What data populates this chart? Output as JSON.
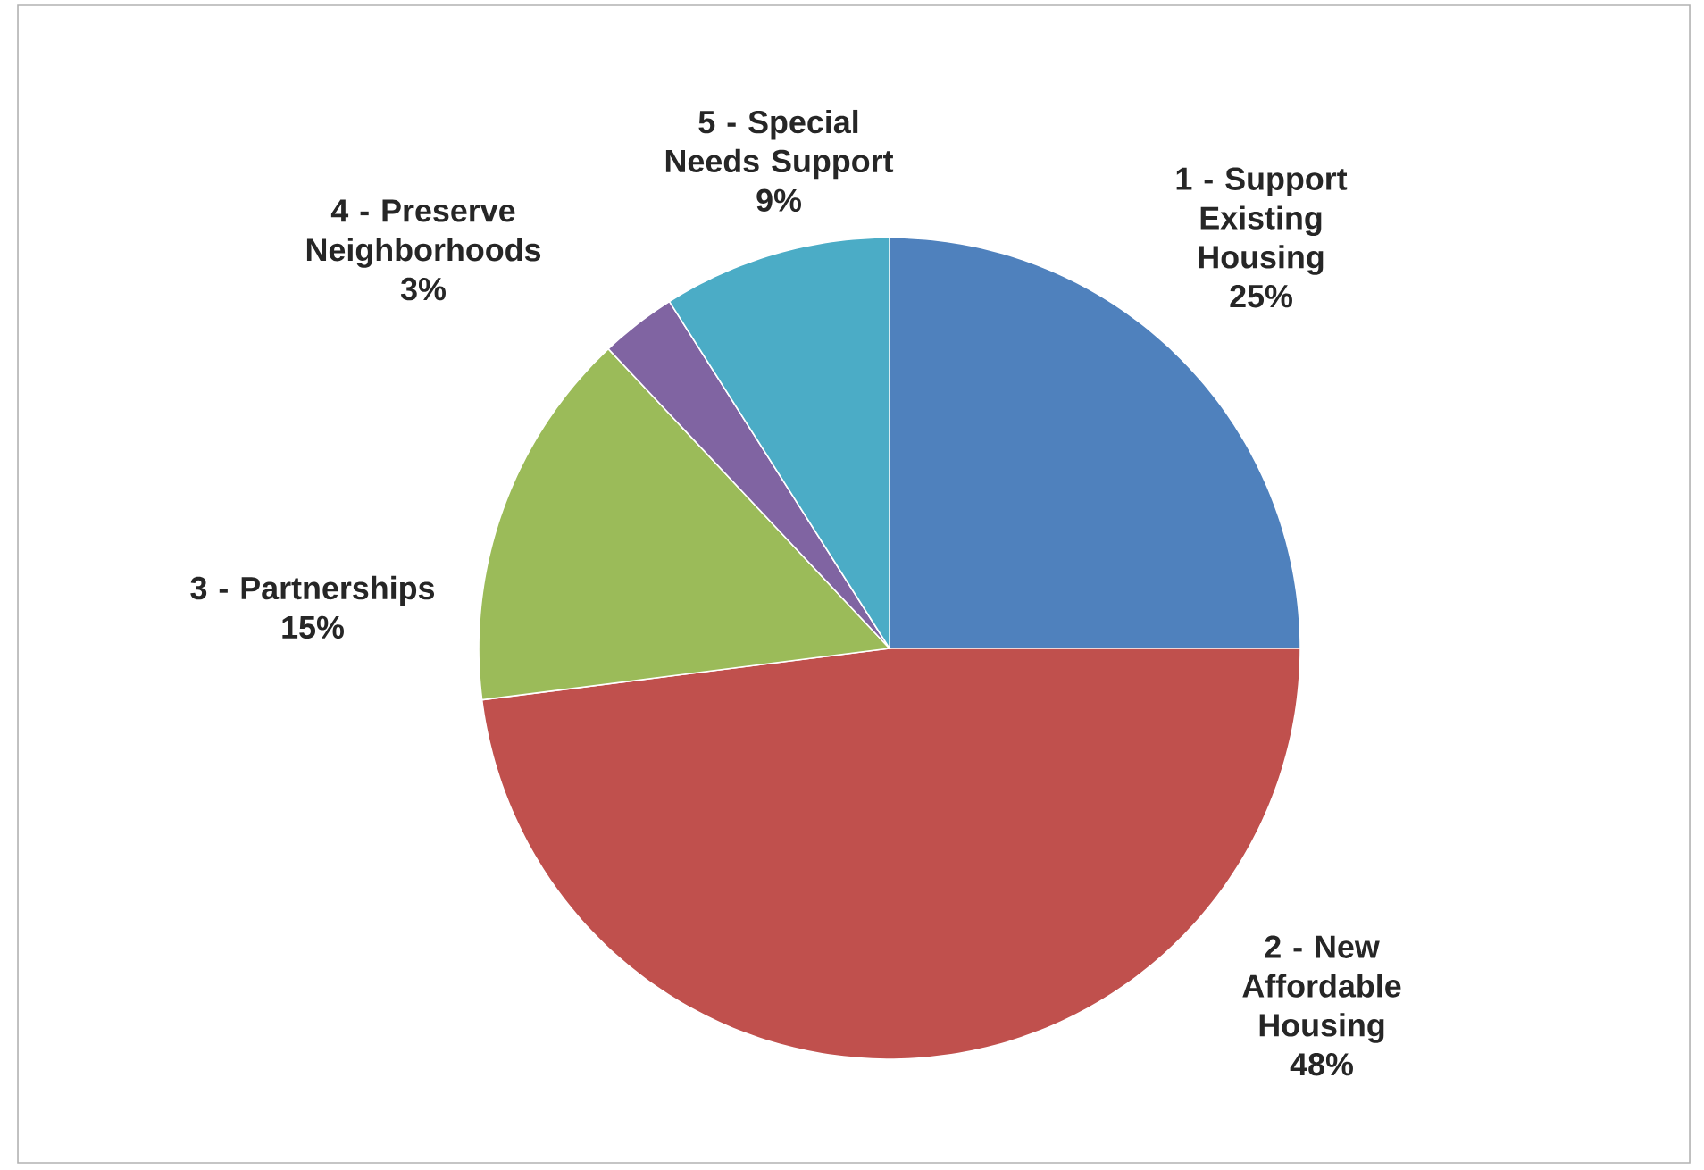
{
  "chart_data": {
    "type": "pie",
    "categories": [
      "1 - Support Existing Housing",
      "2 - New Affordable Housing",
      "3 - Partnerships",
      "4 - Preserve Neighborhoods",
      "5 - Special Needs Support"
    ],
    "values": [
      25,
      48,
      15,
      3,
      9
    ],
    "value_labels": [
      "25%",
      "48%",
      "15%",
      "3%",
      "9%"
    ],
    "colors": [
      "#4f81bd",
      "#c0504d",
      "#9bbb59",
      "#8064a2",
      "#4bacc6"
    ]
  }
}
